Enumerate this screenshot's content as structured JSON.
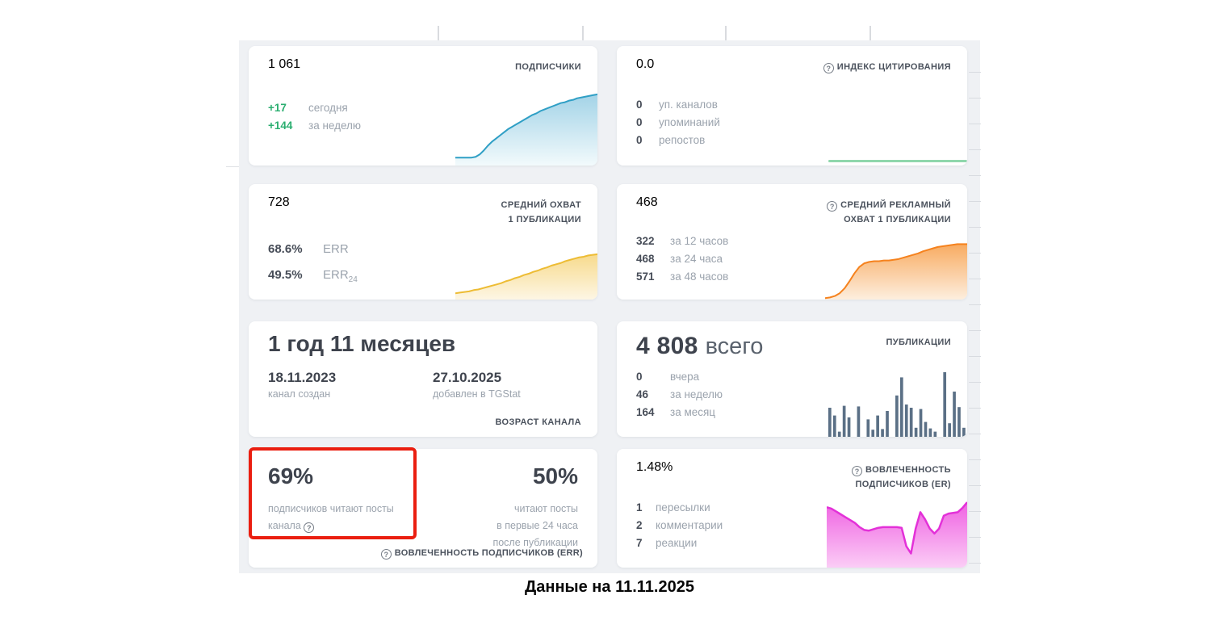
{
  "page": {
    "caption": "Данные на 11.11.2025"
  },
  "icons": {
    "help": "?"
  },
  "cards": {
    "subscribers": {
      "value": "1 061",
      "label": "ПОДПИСЧИКИ",
      "stats": [
        {
          "num": "+17",
          "text": "сегодня"
        },
        {
          "num": "+144",
          "text": "за неделю"
        }
      ],
      "chart": {
        "type": "area",
        "color": "#2f9fc5",
        "fill_top": "#a3d3e7",
        "fill_bottom": "#f2fafc",
        "stroke": 2,
        "values": [
          10,
          10,
          10,
          10,
          10,
          11,
          14,
          19,
          25,
          30,
          34,
          38,
          42,
          46,
          49,
          52,
          55,
          58,
          61,
          64,
          66,
          69,
          71,
          73,
          75,
          77,
          79,
          80,
          82,
          83,
          85,
          86,
          87,
          88,
          89,
          90
        ]
      }
    },
    "citation_index": {
      "value": "0.0",
      "label": "ИНДЕКС ЦИТИРОВАНИЯ",
      "stats": [
        {
          "num": "0",
          "text": "уп. каналов"
        },
        {
          "num": "0",
          "text": "упоминаний"
        },
        {
          "num": "0",
          "text": "репостов"
        }
      ],
      "line_color": "#8fd7ac"
    },
    "avg_reach": {
      "value": "728",
      "label1": "СРЕДНИЙ ОХВАТ",
      "label2": "1 ПУБЛИКАЦИИ",
      "stats": [
        {
          "num": "68.6%",
          "text": "ERR",
          "sub": ""
        },
        {
          "num": "49.5%",
          "text": "ERR",
          "sub": "24"
        }
      ],
      "chart": {
        "type": "area",
        "color": "#edbc34",
        "fill_top": "#f7da8c",
        "fill_bottom": "#fdf6e4",
        "stroke": 2,
        "values": [
          10,
          11,
          12,
          13,
          15,
          16,
          18,
          20,
          22,
          24,
          26,
          29,
          31,
          34,
          36,
          39,
          41,
          44,
          46,
          49,
          51,
          54,
          56,
          58,
          61,
          63,
          65,
          67,
          68,
          70,
          71,
          72
        ]
      }
    },
    "avg_ad_reach": {
      "value": "468",
      "label1": "СРЕДНИЙ РЕКЛАМНЫЙ",
      "label2": "ОХВАТ 1 ПУБЛИКАЦИИ",
      "stats": [
        {
          "num": "322",
          "text": "за 12 часов"
        },
        {
          "num": "468",
          "text": "за 24 часа"
        },
        {
          "num": "571",
          "text": "за 48 часов"
        }
      ],
      "chart": {
        "type": "area",
        "color": "#f5821e",
        "fill_top": "#f8ab61",
        "fill_bottom": "#fdeede",
        "stroke": 2,
        "values": [
          2,
          3,
          5,
          9,
          16,
          26,
          37,
          46,
          51,
          53,
          54,
          54,
          55,
          55,
          56,
          57,
          59,
          61,
          63,
          65,
          68,
          70,
          72,
          74,
          75,
          76,
          77,
          78,
          78,
          78
        ]
      }
    },
    "channel_age": {
      "value": "1 год 11 месяцев",
      "created_date": "18.11.2023",
      "created_text": "канал создан",
      "added_date": "27.10.2025",
      "added_text": "добавлен в TGStat",
      "label": "ВОЗРАСТ КАНАЛА"
    },
    "publications": {
      "value": "4 808",
      "suffix": "всего",
      "label": "ПУБЛИКАЦИИ",
      "stats": [
        {
          "num": "0",
          "text": "вчера"
        },
        {
          "num": "46",
          "text": "за неделю"
        },
        {
          "num": "164",
          "text": "за месяц"
        }
      ],
      "chart": {
        "type": "bar",
        "color": "#5b7086",
        "values": [
          45,
          33,
          8,
          48,
          30,
          0,
          47,
          0,
          27,
          11,
          33,
          12,
          40,
          0,
          64,
          92,
          50,
          45,
          14,
          43,
          23,
          13,
          8,
          0,
          100,
          21,
          70,
          46,
          14
        ]
      }
    },
    "err": {
      "left_value": "69%",
      "left_line1": "подписчиков читают посты",
      "left_line2": "канала",
      "right_value": "50%",
      "right_line1": "читают посты",
      "right_line2": "в первые 24 часа",
      "right_line3": "после публикации",
      "footer": "ВОВЛЕЧЕННОСТЬ ПОДПИСЧИКОВ (ERR)"
    },
    "er": {
      "value": "1.48%",
      "label1": "ВОВЛЕЧЕННОСТЬ",
      "label2": "ПОДПИСЧИКОВ (ER)",
      "stats": [
        {
          "num": "1",
          "text": "пересылки"
        },
        {
          "num": "2",
          "text": "комментарии"
        },
        {
          "num": "7",
          "text": "реакции"
        }
      ],
      "chart": {
        "type": "area",
        "color": "#e331d8",
        "fill_top": "#ef62e2",
        "fill_bottom": "#fbcdf6",
        "stroke": 2.5,
        "values": [
          85,
          83,
          79,
          75,
          71,
          67,
          63,
          57,
          53,
          52,
          54,
          56,
          57,
          57,
          57,
          57,
          56,
          30,
          20,
          55,
          78,
          68,
          55,
          48,
          55,
          73,
          76,
          77,
          78,
          84,
          92
        ]
      }
    }
  }
}
